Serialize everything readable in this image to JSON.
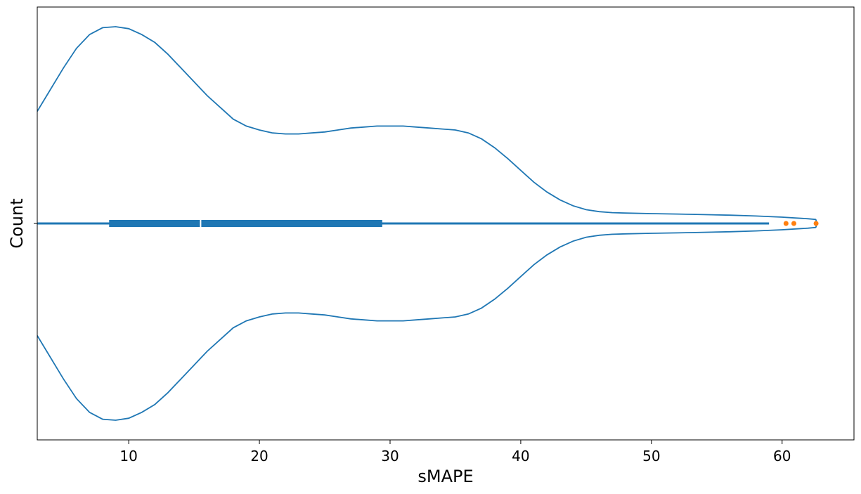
{
  "chart_data": {
    "type": "violin",
    "title": "",
    "xlabel": "sMAPE",
    "ylabel": "Count",
    "xlim": [
      3,
      65.5
    ],
    "xticks": [
      10,
      20,
      30,
      40,
      50,
      60
    ],
    "grid": false,
    "legend": "none",
    "colors": {
      "violin": "#1f77b4",
      "outlier": "#ff7f0e",
      "median": "#ffffff"
    },
    "box": {
      "q1": 8.5,
      "median": 15.5,
      "q3": 29.4,
      "whisker_low": 3,
      "whisker_high": 59
    },
    "outliers": [
      60.3,
      60.9,
      62.6
    ],
    "density": [
      [
        3.0,
        0.57
      ],
      [
        4.0,
        0.68
      ],
      [
        5.0,
        0.79
      ],
      [
        6.0,
        0.89
      ],
      [
        7.0,
        0.96
      ],
      [
        8.0,
        0.995
      ],
      [
        9.0,
        1.0
      ],
      [
        10.0,
        0.99
      ],
      [
        11.0,
        0.96
      ],
      [
        12.0,
        0.92
      ],
      [
        13.0,
        0.86
      ],
      [
        14.0,
        0.79
      ],
      [
        15.0,
        0.72
      ],
      [
        16.0,
        0.65
      ],
      [
        17.0,
        0.59
      ],
      [
        18.0,
        0.53
      ],
      [
        19.0,
        0.495
      ],
      [
        20.0,
        0.475
      ],
      [
        21.0,
        0.46
      ],
      [
        22.0,
        0.455
      ],
      [
        23.0,
        0.455
      ],
      [
        24.0,
        0.46
      ],
      [
        25.0,
        0.465
      ],
      [
        26.0,
        0.475
      ],
      [
        27.0,
        0.485
      ],
      [
        28.0,
        0.49
      ],
      [
        29.0,
        0.495
      ],
      [
        30.0,
        0.495
      ],
      [
        31.0,
        0.495
      ],
      [
        32.0,
        0.49
      ],
      [
        33.0,
        0.485
      ],
      [
        34.0,
        0.48
      ],
      [
        35.0,
        0.475
      ],
      [
        36.0,
        0.46
      ],
      [
        37.0,
        0.43
      ],
      [
        38.0,
        0.385
      ],
      [
        39.0,
        0.33
      ],
      [
        40.0,
        0.27
      ],
      [
        41.0,
        0.21
      ],
      [
        42.0,
        0.16
      ],
      [
        43.0,
        0.12
      ],
      [
        44.0,
        0.09
      ],
      [
        45.0,
        0.07
      ],
      [
        46.0,
        0.06
      ],
      [
        47.0,
        0.055
      ],
      [
        48.0,
        0.053
      ],
      [
        50.0,
        0.05
      ],
      [
        52.0,
        0.048
      ],
      [
        54.0,
        0.045
      ],
      [
        56.0,
        0.042
      ],
      [
        58.0,
        0.038
      ],
      [
        60.0,
        0.032
      ],
      [
        61.0,
        0.028
      ],
      [
        62.0,
        0.024
      ],
      [
        62.6,
        0.02
      ]
    ]
  }
}
